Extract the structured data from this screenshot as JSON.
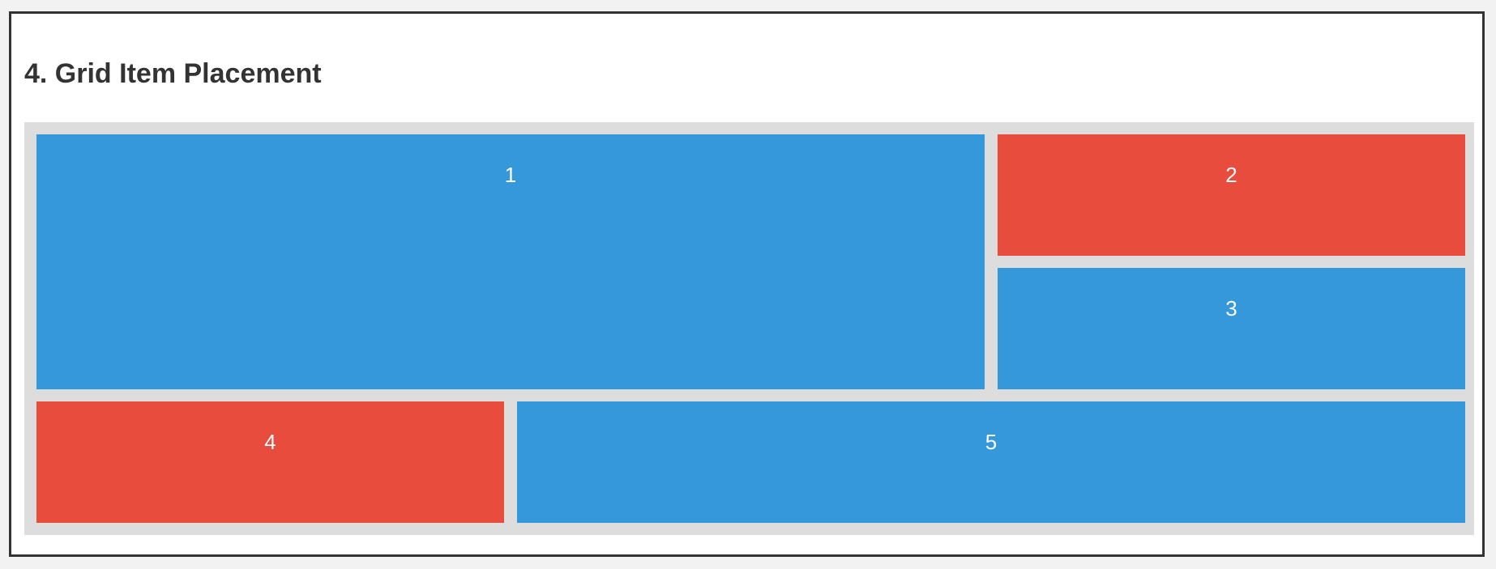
{
  "section": {
    "title": "4. Grid Item Placement"
  },
  "grid": {
    "items": [
      {
        "label": "1",
        "color": "#3498db"
      },
      {
        "label": "2",
        "color": "#e74c3c"
      },
      {
        "label": "3",
        "color": "#3498db"
      },
      {
        "label": "4",
        "color": "#e74c3c"
      },
      {
        "label": "5",
        "color": "#3498db"
      }
    ]
  },
  "colors": {
    "page_background": "#f2f2f2",
    "card_background": "#ffffff",
    "card_border": "#333333",
    "grid_background": "#dddddd",
    "blue": "#3498db",
    "red": "#e74c3c",
    "title_text": "#333333",
    "item_text": "#ffffff"
  }
}
